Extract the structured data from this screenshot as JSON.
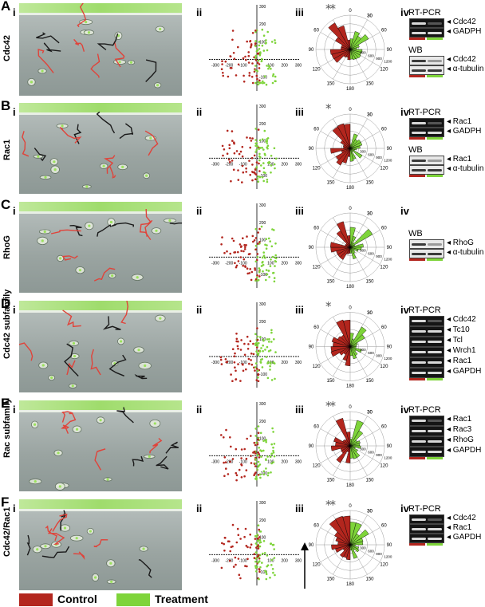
{
  "rows": [
    {
      "letter": "A",
      "gene": "Cdc42",
      "stars": "**",
      "rtpcr_title": "RT-PCR",
      "rtpcr_lanes": [
        "Cdc42",
        "GADPH"
      ],
      "wb_title": "WB",
      "wb_lanes": [
        "Cdc42",
        "α-tubulin"
      ]
    },
    {
      "letter": "B",
      "gene": "Rac1",
      "stars": "*",
      "rtpcr_title": "RT-PCR",
      "rtpcr_lanes": [
        "Rac1",
        "GADPH"
      ],
      "wb_title": "WB",
      "wb_lanes": [
        "Rac1",
        "α-tubulin"
      ]
    },
    {
      "letter": "C",
      "gene": "RhoG",
      "stars": "",
      "wb_title": "WB",
      "wb_lanes": [
        "RhoG",
        "α-tubulin"
      ]
    },
    {
      "letter": "D",
      "gene": "Cdc42 subfamily",
      "stars": "*",
      "rtpcr_title": "RT-PCR",
      "rtpcr_lanes": [
        "Cdc42",
        "Tc10",
        "Tcl",
        "Wrch1",
        "Rac1",
        "GAPDH"
      ]
    },
    {
      "letter": "E",
      "gene": "Rac subfamily",
      "stars": "**",
      "rtpcr_title": "RT-PCR",
      "rtpcr_lanes": [
        "Rac1",
        "Rac3",
        "RhoG",
        "GAPDH"
      ]
    },
    {
      "letter": "F",
      "gene": "Cdc42/Rac1",
      "stars": "**",
      "rtpcr_title": "RT-PCR",
      "rtpcr_lanes": [
        "Cdc42",
        "Rac1",
        "GAPDH"
      ]
    }
  ],
  "panel_labels": {
    "i": "i",
    "ii": "ii",
    "iii": "iii",
    "iv": "iv"
  },
  "scatter_axis": {
    "x_ticks": [
      "-300",
      "-200",
      "-100",
      "100",
      "200",
      "300"
    ],
    "y_ticks": [
      "300",
      "200",
      "100",
      "-100",
      "-200",
      "-300"
    ]
  },
  "rose_axis": {
    "angle_labels": [
      "0",
      "30",
      "60",
      "90",
      "120",
      "150",
      "180"
    ],
    "radial_labels": [
      "300",
      "600",
      "900",
      "1200"
    ]
  },
  "legend": {
    "control": "Control",
    "treatment": "Treatment"
  },
  "colors": {
    "control": "#b3261e",
    "treatment": "#7ed43a",
    "track_black": "#1a1a1a"
  }
}
